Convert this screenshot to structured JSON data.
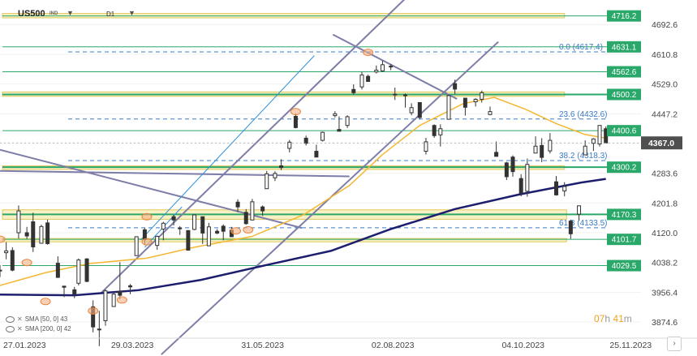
{
  "toolbar": {
    "symbol": "US500",
    "symbol_type": "IND",
    "timeframe": "D1"
  },
  "legend": {
    "sma50": "SMA [50, 0] 43",
    "sma200": "SMA [200, 0] 42"
  },
  "countdown": {
    "hours": "07",
    "h_unit": "h",
    "minutes": "41",
    "m_unit": "m"
  },
  "colors": {
    "zone": "#f6e9a8",
    "zone_border": "#e2c85a",
    "level_line": "#2aa86a",
    "level_box": "#2aa86a",
    "price_box": "#4f4f4f",
    "sma50": "#f5b731",
    "sma200": "#1e1e6e",
    "channel": "#7d7da8",
    "trend_blue": "#2f8fd8",
    "fib": "#3a7bc8",
    "candle": "#333333"
  },
  "chart_data": {
    "type": "candlestick",
    "symbol": "US500",
    "timeframe": "D1",
    "ylim": [
      3830,
      4760
    ],
    "y_ticks": [
      4692.6,
      4610.8,
      4529.0,
      4447.2,
      4365.4,
      4283.6,
      4201.8,
      4120.0,
      4038.2,
      3956.4,
      3874.6
    ],
    "y_tick_labels": [
      "4692.6",
      "4610.8",
      "4529.0",
      "4447.2",
      "",
      "4283.6",
      "4201.8",
      "4120.0",
      "4038.2",
      "3956.4",
      "3874.6"
    ],
    "x_start": "2023-01-24",
    "x_end": "2023-11-30",
    "x_tick_labels": [
      {
        "date": "2023-01-27",
        "label": "27.01.2023"
      },
      {
        "date": "2023-03-29",
        "label": "29.03.2023"
      },
      {
        "date": "2023-05-31",
        "label": "31.05.2023"
      },
      {
        "date": "2023-08-02",
        "label": "02.08.2023"
      },
      {
        "date": "2023-10-04",
        "label": "04.10.2023"
      },
      {
        "date": "2023-11-25",
        "label": "25.11.2023"
      }
    ],
    "current_price": {
      "value": 4367.0,
      "label": "4367.0"
    },
    "levels": [
      {
        "value": 4716.2,
        "label": "4716.2",
        "zone": [
          4711,
          4723
        ]
      },
      {
        "value": 4631.1,
        "label": "4631.1"
      },
      {
        "value": 4562.6,
        "label": "4562.6"
      },
      {
        "value": 4500.2,
        "label": "4500.2",
        "zone": [
          4495,
          4507
        ],
        "bold": true
      },
      {
        "value": 4400.6,
        "label": "4400.6"
      },
      {
        "value": 4300.2,
        "label": "4300.2",
        "zone": [
          4294,
          4304
        ],
        "bold": true
      },
      {
        "value": 4170.3,
        "label": "4170.3",
        "zone": [
          4157,
          4183
        ],
        "bold": true
      },
      {
        "value": 4101.7,
        "label": "4101.7",
        "zone": [
          4095,
          4104
        ]
      },
      {
        "value": 4029.5,
        "label": "4029.5"
      }
    ],
    "fib_levels": [
      {
        "value": 4617.4,
        "label": "0.0 (4617.4)"
      },
      {
        "value": 4432.6,
        "label": "23.6 (4432.6)"
      },
      {
        "value": 4318.3,
        "label": "38.2 (4318.3)"
      },
      {
        "value": 4133.5,
        "label": "61.8 (4133.5)"
      }
    ],
    "candles": [
      {
        "d": "2023-01-24",
        "o": 4016,
        "h": 4031,
        "l": 3998,
        "c": 4017
      },
      {
        "d": "2023-01-27",
        "o": 4065,
        "h": 4094,
        "l": 4047,
        "c": 4070
      },
      {
        "d": "2023-01-30",
        "o": 4071,
        "h": 4080,
        "l": 4014,
        "c": 4017
      },
      {
        "d": "2023-02-02",
        "o": 4120,
        "h": 4195,
        "l": 4104,
        "c": 4180
      },
      {
        "d": "2023-02-06",
        "o": 4120,
        "h": 4136,
        "l": 4103,
        "c": 4111
      },
      {
        "d": "2023-02-09",
        "o": 4150,
        "h": 4175,
        "l": 4067,
        "c": 4081
      },
      {
        "d": "2023-02-13",
        "o": 4091,
        "h": 4142,
        "l": 4090,
        "c": 4137
      },
      {
        "d": "2023-02-16",
        "o": 4147,
        "h": 4156,
        "l": 4087,
        "c": 4090
      },
      {
        "d": "2023-02-21",
        "o": 4036,
        "h": 4055,
        "l": 3998,
        "c": 3997
      },
      {
        "d": "2023-02-24",
        "o": 3973,
        "h": 3974,
        "l": 3943,
        "c": 3970
      },
      {
        "d": "2023-03-01",
        "o": 3963,
        "h": 3971,
        "l": 3940,
        "c": 3951
      },
      {
        "d": "2023-03-03",
        "o": 3981,
        "h": 4049,
        "l": 3975,
        "c": 4045
      },
      {
        "d": "2023-03-07",
        "o": 4048,
        "h": 4050,
        "l": 3984,
        "c": 3986
      },
      {
        "d": "2023-03-10",
        "o": 3916,
        "h": 3934,
        "l": 3846,
        "c": 3861
      },
      {
        "d": "2023-03-13",
        "o": 3855,
        "h": 3905,
        "l": 3808,
        "c": 3855
      },
      {
        "d": "2023-03-16",
        "o": 3878,
        "h": 3964,
        "l": 3864,
        "c": 3960
      },
      {
        "d": "2023-03-20",
        "o": 3917,
        "h": 3956,
        "l": 3917,
        "c": 3951
      },
      {
        "d": "2023-03-23",
        "o": 3959,
        "h": 4039,
        "l": 3937,
        "c": 3948
      },
      {
        "d": "2023-03-28",
        "o": 3974,
        "h": 3979,
        "l": 3951,
        "c": 3971
      },
      {
        "d": "2023-03-31",
        "o": 4057,
        "h": 4110,
        "l": 4056,
        "c": 4109
      },
      {
        "d": "2023-04-04",
        "o": 4128,
        "h": 4133,
        "l": 4086,
        "c": 4101
      },
      {
        "d": "2023-04-10",
        "o": 4085,
        "h": 4112,
        "l": 4073,
        "c": 4110
      },
      {
        "d": "2023-04-13",
        "o": 4130,
        "h": 4150,
        "l": 4099,
        "c": 4146
      },
      {
        "d": "2023-04-18",
        "o": 4164,
        "h": 4169,
        "l": 4140,
        "c": 4155
      },
      {
        "d": "2023-04-21",
        "o": 4132,
        "h": 4138,
        "l": 4114,
        "c": 4133
      },
      {
        "d": "2023-04-25",
        "o": 4126,
        "h": 4126,
        "l": 4071,
        "c": 4072
      },
      {
        "d": "2023-04-28",
        "o": 4129,
        "h": 4170,
        "l": 4127,
        "c": 4169
      },
      {
        "d": "2023-05-02",
        "o": 4164,
        "h": 4164,
        "l": 4089,
        "c": 4119
      },
      {
        "d": "2023-05-05",
        "o": 4084,
        "h": 4147,
        "l": 4084,
        "c": 4136
      },
      {
        "d": "2023-05-09",
        "o": 4124,
        "h": 4130,
        "l": 4116,
        "c": 4119
      },
      {
        "d": "2023-05-12",
        "o": 4138,
        "h": 4143,
        "l": 4099,
        "c": 4124
      },
      {
        "d": "2023-05-16",
        "o": 4127,
        "h": 4136,
        "l": 4109,
        "c": 4109
      },
      {
        "d": "2023-05-19",
        "o": 4204,
        "h": 4212,
        "l": 4177,
        "c": 4191
      },
      {
        "d": "2023-05-23",
        "o": 4176,
        "h": 4185,
        "l": 4142,
        "c": 4145
      },
      {
        "d": "2023-05-26",
        "o": 4155,
        "h": 4213,
        "l": 4154,
        "c": 4205
      },
      {
        "d": "2023-05-31",
        "o": 4191,
        "h": 4195,
        "l": 4166,
        "c": 4180
      },
      {
        "d": "2023-06-02",
        "o": 4241,
        "h": 4290,
        "l": 4241,
        "c": 4282
      },
      {
        "d": "2023-06-06",
        "o": 4271,
        "h": 4289,
        "l": 4262,
        "c": 4283
      },
      {
        "d": "2023-06-09",
        "o": 4304,
        "h": 4322,
        "l": 4292,
        "c": 4299
      },
      {
        "d": "2023-06-13",
        "o": 4352,
        "h": 4375,
        "l": 4341,
        "c": 4369
      },
      {
        "d": "2023-06-16",
        "o": 4440,
        "h": 4448,
        "l": 4407,
        "c": 4409
      },
      {
        "d": "2023-06-21",
        "o": 4380,
        "h": 4387,
        "l": 4360,
        "c": 4366
      },
      {
        "d": "2023-06-26",
        "o": 4344,
        "h": 4362,
        "l": 4328,
        "c": 4328
      },
      {
        "d": "2023-06-29",
        "o": 4374,
        "h": 4398,
        "l": 4371,
        "c": 4396
      },
      {
        "d": "2023-07-05",
        "o": 4442,
        "h": 4454,
        "l": 4437,
        "c": 4447
      },
      {
        "d": "2023-07-07",
        "o": 4404,
        "h": 4440,
        "l": 4402,
        "c": 4399
      },
      {
        "d": "2023-07-11",
        "o": 4415,
        "h": 4443,
        "l": 4408,
        "c": 4439
      },
      {
        "d": "2023-07-14",
        "o": 4514,
        "h": 4528,
        "l": 4500,
        "c": 4505
      },
      {
        "d": "2023-07-18",
        "o": 4521,
        "h": 4562,
        "l": 4514,
        "c": 4554
      },
      {
        "d": "2023-07-21",
        "o": 4550,
        "h": 4555,
        "l": 4535,
        "c": 4536
      },
      {
        "d": "2023-07-25",
        "o": 4562,
        "h": 4580,
        "l": 4558,
        "c": 4567
      },
      {
        "d": "2023-07-28",
        "o": 4565,
        "h": 4593,
        "l": 4563,
        "c": 4582
      },
      {
        "d": "2023-08-01",
        "o": 4578,
        "h": 4584,
        "l": 4567,
        "c": 4577
      },
      {
        "d": "2023-08-03",
        "o": 4501,
        "h": 4519,
        "l": 4485,
        "c": 4501
      },
      {
        "d": "2023-08-08",
        "o": 4498,
        "h": 4503,
        "l": 4464,
        "c": 4499
      },
      {
        "d": "2023-08-11",
        "o": 4450,
        "h": 4476,
        "l": 4443,
        "c": 4464
      },
      {
        "d": "2023-08-15",
        "o": 4478,
        "h": 4478,
        "l": 4432,
        "c": 4437
      },
      {
        "d": "2023-08-18",
        "o": 4344,
        "h": 4381,
        "l": 4335,
        "c": 4370
      },
      {
        "d": "2023-08-22",
        "o": 4415,
        "h": 4418,
        "l": 4381,
        "c": 4387
      },
      {
        "d": "2023-08-25",
        "o": 4389,
        "h": 4418,
        "l": 4357,
        "c": 4406
      },
      {
        "d": "2023-08-29",
        "o": 4432,
        "h": 4500,
        "l": 4431,
        "c": 4497
      },
      {
        "d": "2023-09-01",
        "o": 4530,
        "h": 4541,
        "l": 4501,
        "c": 4515
      },
      {
        "d": "2023-09-06",
        "o": 4490,
        "h": 4490,
        "l": 4442,
        "c": 4465
      },
      {
        "d": "2023-09-11",
        "o": 4480,
        "h": 4490,
        "l": 4467,
        "c": 4487
      },
      {
        "d": "2023-09-14",
        "o": 4487,
        "h": 4511,
        "l": 4478,
        "c": 4505
      },
      {
        "d": "2023-09-18",
        "o": 4445,
        "h": 4467,
        "l": 4443,
        "c": 4453
      },
      {
        "d": "2023-09-21",
        "o": 4341,
        "h": 4371,
        "l": 4329,
        "c": 4330
      },
      {
        "d": "2023-09-26",
        "o": 4312,
        "h": 4315,
        "l": 4265,
        "c": 4274
      },
      {
        "d": "2023-09-29",
        "o": 4328,
        "h": 4333,
        "l": 4274,
        "c": 4288
      },
      {
        "d": "2023-10-03",
        "o": 4269,
        "h": 4281,
        "l": 4220,
        "c": 4229
      },
      {
        "d": "2023-10-06",
        "o": 4234,
        "h": 4324,
        "l": 4219,
        "c": 4308
      },
      {
        "d": "2023-10-10",
        "o": 4339,
        "h": 4385,
        "l": 4339,
        "c": 4358
      },
      {
        "d": "2023-10-13",
        "o": 4360,
        "h": 4380,
        "l": 4314,
        "c": 4327
      },
      {
        "d": "2023-10-17",
        "o": 4345,
        "h": 4394,
        "l": 4338,
        "c": 4374
      },
      {
        "d": "2023-10-20",
        "o": 4260,
        "h": 4276,
        "l": 4222,
        "c": 4224
      },
      {
        "d": "2023-10-24",
        "o": 4235,
        "h": 4259,
        "l": 4220,
        "c": 4247
      },
      {
        "d": "2023-10-27",
        "o": 4152,
        "h": 4156,
        "l": 4103,
        "c": 4117
      },
      {
        "d": "2023-10-31",
        "o": 4171,
        "h": 4195,
        "l": 4153,
        "c": 4194
      },
      {
        "d": "2023-11-03",
        "o": 4334,
        "h": 4374,
        "l": 4334,
        "c": 4358
      },
      {
        "d": "2023-11-07",
        "o": 4366,
        "h": 4380,
        "l": 4345,
        "c": 4378
      },
      {
        "d": "2023-11-10",
        "o": 4364,
        "h": 4415,
        "l": 4357,
        "c": 4415
      },
      {
        "d": "2023-11-13",
        "o": 4406,
        "h": 4412,
        "l": 4366,
        "c": 4367
      }
    ],
    "sma50": [
      {
        "d": "2023-01-24",
        "v": 3975
      },
      {
        "d": "2023-02-15",
        "v": 4010
      },
      {
        "d": "2023-03-08",
        "v": 4035
      },
      {
        "d": "2023-04-05",
        "v": 4050
      },
      {
        "d": "2023-04-28",
        "v": 4080
      },
      {
        "d": "2023-05-26",
        "v": 4110
      },
      {
        "d": "2023-06-20",
        "v": 4170
      },
      {
        "d": "2023-07-12",
        "v": 4250
      },
      {
        "d": "2023-07-28",
        "v": 4335
      },
      {
        "d": "2023-08-15",
        "v": 4415
      },
      {
        "d": "2023-09-05",
        "v": 4475
      },
      {
        "d": "2023-09-20",
        "v": 4492
      },
      {
        "d": "2023-10-05",
        "v": 4460
      },
      {
        "d": "2023-10-20",
        "v": 4420
      },
      {
        "d": "2023-11-03",
        "v": 4390
      },
      {
        "d": "2023-11-13",
        "v": 4380
      }
    ],
    "sma200": [
      {
        "d": "2023-01-24",
        "v": 3950
      },
      {
        "d": "2023-03-01",
        "v": 3948
      },
      {
        "d": "2023-04-01",
        "v": 3962
      },
      {
        "d": "2023-05-01",
        "v": 3990
      },
      {
        "d": "2023-06-01",
        "v": 4030
      },
      {
        "d": "2023-07-03",
        "v": 4070
      },
      {
        "d": "2023-08-01",
        "v": 4130
      },
      {
        "d": "2023-09-01",
        "v": 4185
      },
      {
        "d": "2023-10-02",
        "v": 4225
      },
      {
        "d": "2023-11-01",
        "v": 4258
      },
      {
        "d": "2023-11-13",
        "v": 4268
      }
    ],
    "trendlines": [
      {
        "name": "channel-upper",
        "from": {
          "d": "2023-03-14",
          "v": 3955
        },
        "to": {
          "d": "2023-08-20",
          "v": 4830
        },
        "color": "channel"
      },
      {
        "name": "channel-lower",
        "from": {
          "d": "2023-04-12",
          "v": 3785
        },
        "to": {
          "d": "2023-09-22",
          "v": 4645
        },
        "color": "channel"
      },
      {
        "name": "support-diagonal",
        "from": {
          "d": "2023-01-24",
          "v": 4290
        },
        "to": {
          "d": "2023-07-12",
          "v": 4275
        },
        "color": "channel"
      },
      {
        "name": "falling-line",
        "from": {
          "d": "2023-01-24",
          "v": 4348
        },
        "to": {
          "d": "2023-06-19",
          "v": 4133
        },
        "color": "channel"
      },
      {
        "name": "resistance-diagonal",
        "from": {
          "d": "2023-07-04",
          "v": 4665
        },
        "to": {
          "d": "2023-09-02",
          "v": 4488
        },
        "color": "channel"
      },
      {
        "name": "blue-trend-1",
        "from": {
          "d": "2023-04-02",
          "v": 4100
        },
        "to": {
          "d": "2023-06-25",
          "v": 4607
        },
        "color": "trend_blue"
      },
      {
        "name": "blue-trend-2",
        "from": {
          "d": "2023-04-04",
          "v": 4080
        },
        "to": {
          "d": "2023-04-22",
          "v": 4191
        },
        "color": "trend_blue"
      }
    ],
    "markers": [
      {
        "d": "2023-01-24",
        "v": 4102
      },
      {
        "d": "2023-02-06",
        "v": 4038
      },
      {
        "d": "2023-02-15",
        "v": 3931
      },
      {
        "d": "2023-03-10",
        "v": 3905
      },
      {
        "d": "2023-03-24",
        "v": 3935
      },
      {
        "d": "2023-04-05",
        "v": 4164
      },
      {
        "d": "2023-04-05",
        "v": 4095
      },
      {
        "d": "2023-05-18",
        "v": 4125
      },
      {
        "d": "2023-05-24",
        "v": 4128
      },
      {
        "d": "2023-06-16",
        "v": 4453
      },
      {
        "d": "2023-07-21",
        "v": 4616
      }
    ]
  }
}
